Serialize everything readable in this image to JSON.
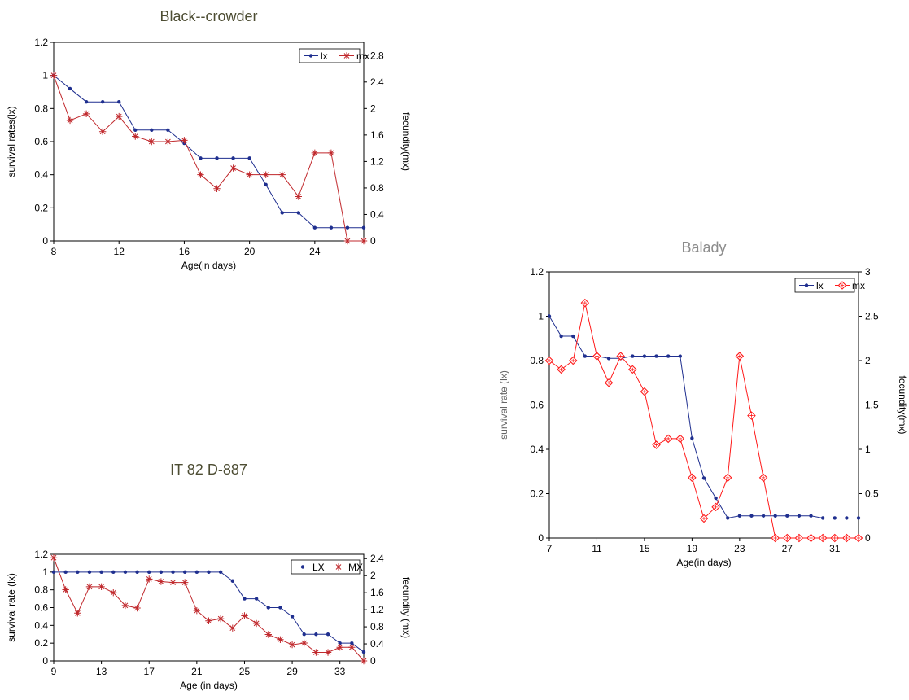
{
  "colors": {
    "lx": "#1f2f8f",
    "mx": "#c0282c",
    "mx_balady": "#ff1a1a",
    "axis": "#000000",
    "title_dark": "#4d4d33",
    "title_gray": "#8c8c8c"
  },
  "chart_data": [
    {
      "type": "line",
      "title": "Black--crowder",
      "xlabel": "Age(in days)",
      "ylabel": "survival rates(lx)",
      "y2label": "fecundity(mx)",
      "xlim": [
        8,
        27
      ],
      "xticks": [
        8,
        12,
        16,
        20,
        24
      ],
      "xtick_labels": [
        "8",
        "12",
        "16",
        "20",
        "24"
      ],
      "ylim": [
        0,
        1.2
      ],
      "yticks": [
        0,
        0.2,
        0.4,
        0.6,
        0.8,
        1,
        1.2
      ],
      "ytick_labels": [
        "0",
        "0.2",
        "0.4",
        "0.6",
        "0.8",
        "1",
        "1.2"
      ],
      "y2lim": [
        0,
        3.0
      ],
      "y2ticks": [
        0,
        0.4,
        0.8,
        1.2,
        1.6,
        2,
        2.4,
        2.8
      ],
      "y2tick_labels": [
        "0",
        "0.4",
        "0.8",
        "1.2",
        "1.6",
        "2",
        "2.4",
        "2.8"
      ],
      "legend": "top-right",
      "grid": false,
      "series": [
        {
          "name": "lx",
          "axis": "left",
          "marker": "dot",
          "x": [
            8,
            9,
            10,
            11,
            12,
            13,
            14,
            15,
            16,
            17,
            18,
            19,
            20,
            21,
            22,
            23,
            24,
            25,
            26,
            27
          ],
          "values": [
            1,
            0.92,
            0.84,
            0.84,
            0.84,
            0.67,
            0.67,
            0.67,
            0.59,
            0.5,
            0.5,
            0.5,
            0.5,
            0.34,
            0.17,
            0.17,
            0.08,
            0.08,
            0.08,
            0.08
          ]
        },
        {
          "name": "mx",
          "axis": "right",
          "marker": "star",
          "x": [
            8,
            9,
            10,
            11,
            12,
            13,
            14,
            15,
            16,
            17,
            18,
            19,
            20,
            21,
            22,
            23,
            24,
            25,
            26,
            27
          ],
          "values": [
            2.5,
            1.82,
            1.92,
            1.65,
            1.88,
            1.58,
            1.5,
            1.5,
            1.52,
            1.0,
            0.79,
            1.1,
            1.0,
            1.0,
            1.0,
            0.67,
            1.33,
            1.33,
            0,
            0
          ]
        }
      ]
    },
    {
      "type": "line",
      "title": "Balady",
      "xlabel": "Age(in days)",
      "ylabel": "survival rate (lx)",
      "y2label": "fecundity(mx)",
      "xlim": [
        7,
        33
      ],
      "xticks": [
        7,
        11,
        15,
        19,
        23,
        27,
        31
      ],
      "xtick_labels": [
        "7",
        "11",
        "15",
        "19",
        "23",
        "27",
        "31"
      ],
      "ylim": [
        0,
        1.2
      ],
      "yticks": [
        0,
        0.2,
        0.4,
        0.6,
        0.8,
        1,
        1.2
      ],
      "ytick_labels": [
        "0",
        "0.2",
        "0.4",
        "0.6",
        "0.8",
        "1",
        "1.2"
      ],
      "y2lim": [
        0,
        3
      ],
      "y2ticks": [
        0,
        0.5,
        1,
        1.5,
        2,
        2.5,
        3
      ],
      "y2tick_labels": [
        "0",
        "0.5",
        "1",
        "1.5",
        "2",
        "2.5",
        "3"
      ],
      "legend": "top-right",
      "grid": false,
      "series": [
        {
          "name": "lx",
          "axis": "left",
          "marker": "dot",
          "x": [
            7,
            8,
            9,
            10,
            11,
            12,
            13,
            14,
            15,
            16,
            17,
            18,
            19,
            20,
            21,
            22,
            23,
            24,
            25,
            26,
            27,
            28,
            29,
            30,
            31,
            32,
            33
          ],
          "values": [
            1.0,
            0.91,
            0.91,
            0.82,
            0.82,
            0.81,
            0.81,
            0.82,
            0.82,
            0.82,
            0.82,
            0.82,
            0.45,
            0.27,
            0.18,
            0.09,
            0.1,
            0.1,
            0.1,
            0.1,
            0.1,
            0.1,
            0.1,
            0.09,
            0.09,
            0.09,
            0.09
          ]
        },
        {
          "name": "mx",
          "axis": "right",
          "marker": "diamond",
          "x": [
            7,
            8,
            9,
            10,
            11,
            12,
            13,
            14,
            15,
            16,
            17,
            18,
            19,
            20,
            21,
            22,
            23,
            24,
            25,
            26,
            27,
            28,
            29,
            30,
            31,
            32,
            33
          ],
          "values": [
            2.0,
            1.9,
            2.0,
            2.65,
            2.05,
            1.75,
            2.05,
            1.9,
            1.65,
            1.05,
            1.12,
            1.12,
            0.68,
            0.22,
            0.35,
            0.68,
            2.05,
            1.38,
            0.68,
            0,
            0,
            0,
            0,
            0,
            0,
            0,
            0
          ]
        }
      ]
    },
    {
      "type": "line",
      "title": "IT 82 D-887",
      "xlabel": "Age (in days)",
      "ylabel": "survival rate (lx)",
      "y2label": "fecundity (mx)",
      "xlim": [
        9,
        35
      ],
      "xticks": [
        9,
        13,
        17,
        21,
        25,
        29,
        33
      ],
      "xtick_labels": [
        "9",
        "13",
        "17",
        "21",
        "25",
        "29",
        "33"
      ],
      "ylim": [
        0,
        1.2
      ],
      "yticks": [
        0,
        0.2,
        0.4,
        0.6,
        0.8,
        1,
        1.2
      ],
      "ytick_labels": [
        "0",
        "0.2",
        "0.4",
        "0.6",
        "0.8",
        "1",
        "1.2"
      ],
      "y2lim": [
        0,
        2.5
      ],
      "y2ticks": [
        0,
        0.4,
        0.8,
        1.2,
        1.6,
        2,
        2.4
      ],
      "y2tick_labels": [
        "0",
        "0.4",
        "0.8",
        "1.2",
        "1.6",
        "2",
        "2.4"
      ],
      "legend": "top-right",
      "grid": false,
      "series": [
        {
          "name": "LX",
          "axis": "left",
          "marker": "dot",
          "x": [
            9,
            10,
            11,
            12,
            13,
            14,
            15,
            16,
            17,
            18,
            19,
            20,
            21,
            22,
            23,
            24,
            25,
            26,
            27,
            28,
            29,
            30,
            31,
            32,
            33,
            34,
            35
          ],
          "values": [
            1,
            1,
            1,
            1,
            1,
            1,
            1,
            1,
            1,
            1,
            1,
            1,
            1,
            1,
            1,
            0.9,
            0.7,
            0.7,
            0.6,
            0.6,
            0.5,
            0.3,
            0.3,
            0.3,
            0.2,
            0.2,
            0.1
          ]
        },
        {
          "name": "MX",
          "axis": "right",
          "marker": "star",
          "x": [
            9,
            10,
            11,
            12,
            13,
            14,
            15,
            16,
            17,
            18,
            19,
            20,
            21,
            22,
            23,
            24,
            25,
            26,
            27,
            28,
            29,
            30,
            31,
            32,
            33,
            34,
            35
          ],
          "values": [
            2.42,
            1.67,
            1.12,
            1.74,
            1.74,
            1.6,
            1.3,
            1.24,
            1.92,
            1.86,
            1.84,
            1.84,
            1.18,
            0.94,
            0.99,
            0.77,
            1.06,
            0.88,
            0.62,
            0.5,
            0.38,
            0.42,
            0.2,
            0.2,
            0.32,
            0.32,
            0
          ]
        }
      ]
    }
  ]
}
